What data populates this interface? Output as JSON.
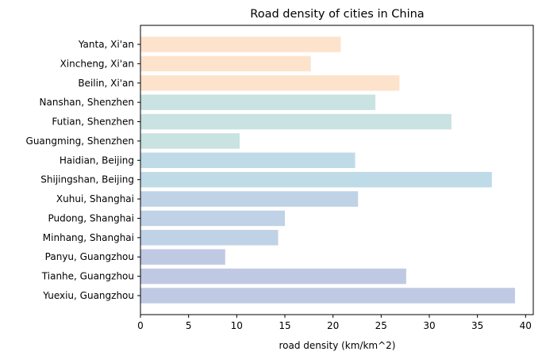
{
  "chart_data": {
    "type": "bar",
    "orientation": "horizontal",
    "title": "Road density of cities in China",
    "xlabel": "road density (km/km^2)",
    "ylabel": "",
    "xlim": [
      0,
      40.8
    ],
    "xticks": [
      0,
      5,
      10,
      15,
      20,
      25,
      30,
      35,
      40
    ],
    "grid": false,
    "categories": [
      "Yanta, Xi'an",
      "Xincheng, Xi'an",
      "Beilin, Xi'an",
      "Nanshan, Shenzhen",
      "Futian, Shenzhen",
      "Guangming, Shenzhen",
      "Haidian, Beijing",
      "Shijingshan, Beijing",
      "Xuhui, Shanghai",
      "Pudong, Shanghai",
      "Minhang, Shanghai",
      "Panyu, Guangzhou",
      "Tianhe, Guangzhou",
      "Yuexiu, Guangzhou"
    ],
    "values": [
      20.8,
      17.7,
      26.9,
      24.4,
      32.3,
      10.3,
      22.3,
      36.5,
      22.6,
      15.0,
      14.3,
      8.8,
      27.6,
      38.9
    ],
    "colors": [
      "#fde3cc",
      "#fde3cc",
      "#fde3cc",
      "#c8e3e1",
      "#c8e3e1",
      "#c8e3e1",
      "#c0dbe8",
      "#c0dbe8",
      "#c0d2e6",
      "#c0d2e6",
      "#c0d2e6",
      "#c0c9e4",
      "#c0c9e4",
      "#c0c9e4"
    ]
  }
}
